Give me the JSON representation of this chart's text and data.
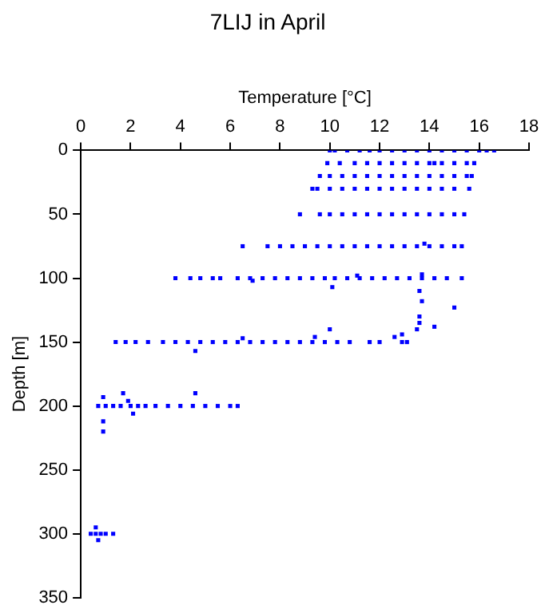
{
  "chart_data": {
    "type": "scatter",
    "title": "7LIJ in April",
    "xlabel": "Temperature [°C]",
    "ylabel": "Depth [m]",
    "marker": "square",
    "color": "#0000ff",
    "x": [
      10.0,
      10.2,
      10.7,
      11.2,
      11.6,
      12.0,
      12.5,
      13.0,
      13.5,
      14.0,
      14.5,
      15.0,
      15.5,
      16.0,
      16.3,
      16.6,
      9.9,
      10.4,
      11.0,
      11.5,
      12.0,
      12.5,
      13.0,
      13.5,
      14.0,
      14.2,
      14.5,
      15.0,
      15.5,
      15.8,
      9.6,
      10.0,
      10.5,
      11.0,
      11.5,
      12.0,
      12.5,
      13.0,
      13.5,
      14.0,
      14.5,
      15.0,
      15.5,
      15.7,
      9.3,
      9.5,
      10.0,
      10.5,
      11.0,
      11.5,
      12.0,
      12.5,
      13.0,
      13.5,
      14.0,
      14.5,
      15.0,
      15.6,
      8.8,
      9.6,
      10.0,
      10.5,
      11.0,
      11.5,
      12.0,
      12.5,
      13.0,
      13.5,
      14.0,
      14.5,
      15.0,
      15.4,
      6.5,
      7.5,
      8.0,
      8.5,
      9.0,
      9.5,
      10.0,
      10.5,
      11.0,
      11.5,
      12.0,
      12.5,
      13.0,
      13.5,
      14.0,
      14.5,
      15.0,
      15.3,
      13.8,
      3.8,
      4.4,
      4.8,
      5.3,
      5.6,
      6.3,
      6.8,
      7.3,
      7.8,
      8.3,
      8.8,
      9.3,
      9.8,
      10.2,
      10.7,
      11.2,
      11.7,
      12.2,
      12.7,
      13.2,
      13.7,
      14.2,
      14.7,
      15.3,
      6.9,
      10.1,
      13.7,
      11.1,
      1.4,
      1.8,
      2.2,
      2.7,
      3.3,
      3.8,
      4.3,
      4.8,
      5.3,
      5.8,
      6.3,
      6.8,
      7.3,
      7.8,
      8.3,
      8.8,
      9.3,
      9.8,
      10.3,
      10.8,
      11.6,
      12.0,
      12.9,
      13.1,
      12.6,
      12.9,
      13.6,
      13.7,
      13.6,
      13.6,
      13.5,
      14.2,
      15.0,
      10.0,
      6.5,
      9.4,
      4.6,
      0.7,
      1.0,
      1.3,
      1.6,
      2.0,
      2.3,
      2.6,
      3.0,
      3.5,
      4.0,
      4.5,
      5.0,
      5.5,
      6.0,
      6.3,
      0.9,
      0.9,
      0.9,
      1.7,
      4.6,
      1.9,
      2.1,
      0.4,
      0.6,
      0.8,
      1.0,
      1.3,
      0.6,
      0.7
    ],
    "values": [
      0,
      0,
      0,
      0,
      0,
      0,
      0,
      0,
      0,
      0,
      0,
      0,
      0,
      0,
      0,
      0,
      10,
      10,
      10,
      10,
      10,
      10,
      10,
      10,
      10,
      10,
      10,
      10,
      10,
      10,
      20,
      20,
      20,
      20,
      20,
      20,
      20,
      20,
      20,
      20,
      20,
      20,
      20,
      20,
      30,
      30,
      30,
      30,
      30,
      30,
      30,
      30,
      30,
      30,
      30,
      30,
      30,
      30,
      50,
      50,
      50,
      50,
      50,
      50,
      50,
      50,
      50,
      50,
      50,
      50,
      50,
      50,
      75,
      75,
      75,
      75,
      75,
      75,
      75,
      75,
      75,
      75,
      75,
      75,
      75,
      75,
      75,
      75,
      75,
      75,
      73,
      100,
      100,
      100,
      100,
      100,
      100,
      100,
      100,
      100,
      100,
      100,
      100,
      100,
      100,
      100,
      100,
      100,
      100,
      100,
      100,
      100,
      100,
      100,
      100,
      102,
      107,
      97,
      98,
      150,
      150,
      150,
      150,
      150,
      150,
      150,
      150,
      150,
      150,
      150,
      150,
      150,
      150,
      150,
      150,
      150,
      150,
      150,
      150,
      150,
      150,
      150,
      150,
      146,
      144,
      110,
      118,
      130,
      135,
      140,
      138,
      123,
      140,
      147,
      146,
      157,
      200,
      200,
      200,
      200,
      200,
      200,
      200,
      200,
      200,
      200,
      200,
      200,
      200,
      200,
      200,
      193,
      212,
      220,
      190,
      190,
      196,
      206,
      300,
      300,
      300,
      300,
      300,
      295,
      305
    ],
    "xlim": [
      0,
      18
    ],
    "xticks": [
      0,
      2,
      4,
      6,
      8,
      10,
      12,
      14,
      16,
      18
    ],
    "ylim": [
      350,
      0
    ],
    "yticks": [
      0,
      50,
      100,
      150,
      200,
      250,
      300,
      350
    ]
  }
}
